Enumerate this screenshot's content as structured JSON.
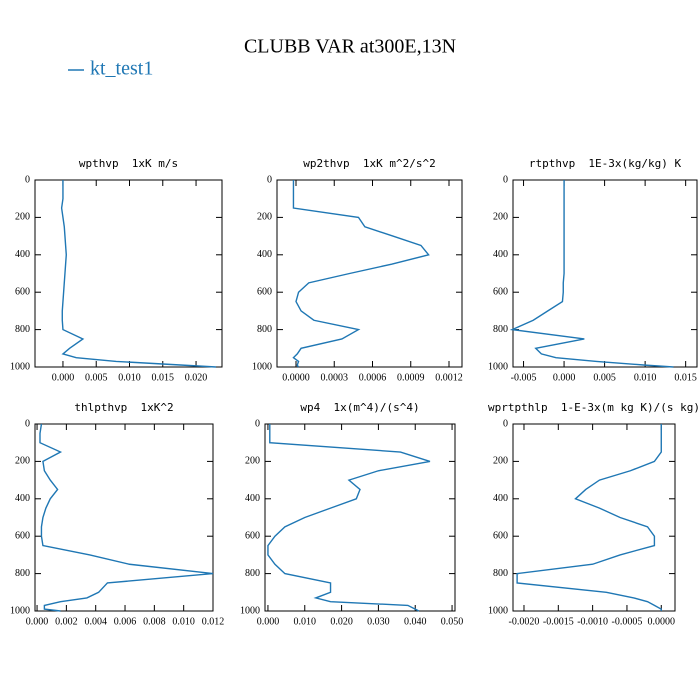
{
  "title": "CLUBB VAR at300E,13N",
  "chart_data": [
    {
      "type": "line",
      "title": "wpthvp  1xK m/s",
      "y": [
        0,
        50,
        100,
        150,
        200,
        250,
        300,
        350,
        400,
        450,
        500,
        550,
        600,
        650,
        700,
        750,
        800,
        850,
        900,
        930,
        950,
        970,
        990,
        1000
      ],
      "ylim": [
        0,
        1000
      ],
      "y_inverted": true,
      "yticks": [
        0,
        200,
        400,
        600,
        800,
        1000
      ],
      "xlim": [
        -0.0042,
        0.0239
      ],
      "xticks": [
        {
          "value": 0,
          "label": "0.000"
        },
        0.005,
        {
          "value": 0.01,
          "label": "0.010"
        },
        0.015,
        {
          "value": 0.02,
          "label": "0.020"
        }
      ],
      "series": [
        {
          "name": "kt_test1",
          "color": "#1f77b4",
          "values": [
            0.0,
            0.0,
            0.0,
            -0.0002,
            0.0,
            0.0002,
            0.0003,
            0.0004,
            0.0005,
            0.0004,
            0.0003,
            0.0002,
            0.0001,
            0.0,
            -0.0001,
            -0.0001,
            0.0,
            0.003,
            0.001,
            0.0,
            0.002,
            0.008,
            0.018,
            0.023
          ]
        }
      ]
    },
    {
      "type": "line",
      "title": "wp2thvp  1xK m^2/s^2",
      "y": [
        0,
        50,
        100,
        150,
        200,
        250,
        300,
        350,
        400,
        450,
        500,
        550,
        600,
        650,
        700,
        750,
        800,
        850,
        900,
        930,
        950,
        970,
        990,
        1000
      ],
      "ylim": [
        0,
        1000
      ],
      "y_inverted": true,
      "yticks": [
        0,
        200,
        400,
        600,
        800,
        1000
      ],
      "xlim": [
        -0.000149,
        0.001302
      ],
      "xticks": [
        {
          "value": 0,
          "label": "0.0000"
        },
        0.0003,
        0.0006,
        0.0009,
        0.0012
      ],
      "series": [
        {
          "name": "kt_test1",
          "color": "#1f77b4",
          "values": [
            -2e-05,
            -2e-05,
            -2e-05,
            -2e-05,
            0.00049,
            0.00054,
            0.00076,
            0.00098,
            0.00104,
            0.00075,
            0.00042,
            0.0001,
            2e-05,
            0.0,
            4e-05,
            0.00014,
            0.00049,
            0.00036,
            4e-05,
            1e-05,
            -2e-05,
            2e-05,
            1e-05,
            2e-05
          ]
        }
      ]
    },
    {
      "type": "line",
      "title": "rtpthvp  1E-3x(kg/kg) K",
      "y": [
        0,
        50,
        100,
        150,
        200,
        250,
        300,
        350,
        400,
        450,
        500,
        550,
        600,
        650,
        700,
        750,
        800,
        850,
        900,
        930,
        950,
        970,
        990,
        1000
      ],
      "ylim": [
        0,
        1000
      ],
      "y_inverted": true,
      "yticks": [
        0,
        200,
        400,
        600,
        800,
        1000
      ],
      "xlim": [
        -0.0063,
        0.0164
      ],
      "xticks": [
        -0.005,
        {
          "value": 0,
          "label": "0.000"
        },
        0.005,
        {
          "value": 0.01,
          "label": "0.010"
        },
        0.015
      ],
      "series": [
        {
          "name": "kt_test1",
          "color": "#1f77b4",
          "values": [
            0.0,
            0.0,
            0.0,
            0.0,
            0.0,
            0.0,
            0.0,
            0.0,
            0.0,
            0.0,
            0.0,
            -0.0001,
            -0.0001,
            -0.0002,
            -0.002,
            -0.0038,
            -0.0064,
            0.0025,
            -0.0035,
            -0.0028,
            -0.001,
            0.004,
            0.01,
            0.0135
          ]
        }
      ]
    },
    {
      "type": "line",
      "title": "thlpthvp  1xK^2",
      "y": [
        0,
        50,
        100,
        150,
        200,
        250,
        300,
        350,
        400,
        450,
        500,
        550,
        600,
        650,
        700,
        750,
        800,
        850,
        900,
        930,
        950,
        970,
        990,
        1000
      ],
      "ylim": [
        0,
        1000
      ],
      "y_inverted": true,
      "yticks": [
        0,
        200,
        400,
        600,
        800,
        1000
      ],
      "xlim": [
        -0.00014,
        0.012
      ],
      "xticks": [
        {
          "value": 0,
          "label": "0.000"
        },
        0.002,
        0.004,
        0.006,
        0.008,
        {
          "value": 0.01,
          "label": "0.010"
        },
        0.012
      ],
      "series": [
        {
          "name": "kt_test1",
          "color": "#1f77b4",
          "values": [
            0.0003,
            0.0002,
            0.0002,
            0.0016,
            0.0004,
            0.0005,
            0.0009,
            0.0014,
            0.0009,
            0.0006,
            0.0004,
            0.0003,
            0.0003,
            0.0004,
            0.0036,
            0.0063,
            0.012,
            0.0048,
            0.0042,
            0.0034,
            0.0016,
            0.0005,
            0.0005,
            0.0016
          ]
        }
      ]
    },
    {
      "type": "line",
      "title": "wp4  1x(m^4)/(s^4)",
      "y": [
        0,
        50,
        100,
        150,
        200,
        250,
        300,
        350,
        400,
        450,
        500,
        550,
        600,
        650,
        700,
        750,
        800,
        850,
        900,
        930,
        950,
        970,
        990,
        1000
      ],
      "ylim": [
        0,
        1000
      ],
      "y_inverted": true,
      "yticks": [
        0,
        200,
        400,
        600,
        800,
        1000
      ],
      "xlim": [
        -0.0008,
        0.0508
      ],
      "xticks": [
        {
          "value": 0,
          "label": "0.000"
        },
        {
          "value": 0.01,
          "label": "0.010"
        },
        {
          "value": 0.02,
          "label": "0.020"
        },
        {
          "value": 0.03,
          "label": "0.030"
        },
        {
          "value": 0.04,
          "label": "0.040"
        },
        {
          "value": 0.05,
          "label": "0.050"
        }
      ],
      "series": [
        {
          "name": "kt_test1",
          "color": "#1f77b4",
          "values": [
            0.0005,
            0.0005,
            0.0005,
            0.036,
            0.044,
            0.03,
            0.022,
            0.025,
            0.024,
            0.017,
            0.01,
            0.0046,
            0.0019,
            0.0,
            0.0,
            0.0019,
            0.0046,
            0.017,
            0.017,
            0.013,
            0.017,
            0.038,
            0.04,
            0.041
          ]
        }
      ]
    },
    {
      "type": "line",
      "title": "wprtpthlp  1-E-3x(m kg K)/(s kg)",
      "y": [
        0,
        50,
        100,
        150,
        200,
        250,
        300,
        350,
        400,
        450,
        500,
        550,
        600,
        650,
        700,
        750,
        800,
        850,
        900,
        930,
        950,
        970,
        990,
        1000
      ],
      "ylim": [
        0,
        1000
      ],
      "y_inverted": true,
      "yticks": [
        0,
        200,
        400,
        600,
        800,
        1000
      ],
      "xlim": [
        -0.00216,
        0.0002
      ],
      "xticks": [
        {
          "value": -0.002,
          "label": "-0.0020"
        },
        -0.0015,
        {
          "value": -0.001,
          "label": "-0.0010"
        },
        -0.0005,
        {
          "value": 0,
          "label": "0.0000"
        }
      ],
      "series": [
        {
          "name": "kt_test1",
          "color": "#1f77b4",
          "values": [
            0.0,
            0.0,
            0.0,
            0.0,
            -0.0001,
            -0.00045,
            -0.0009,
            -0.0011,
            -0.00125,
            -0.0009,
            -0.0006,
            -0.0002,
            -0.0001,
            -0.0001,
            -0.0006,
            -0.001,
            -0.0021,
            -0.0021,
            -0.0008,
            -0.0004,
            -0.0002,
            -0.0001,
            0.0,
            0.0
          ]
        }
      ]
    }
  ]
}
